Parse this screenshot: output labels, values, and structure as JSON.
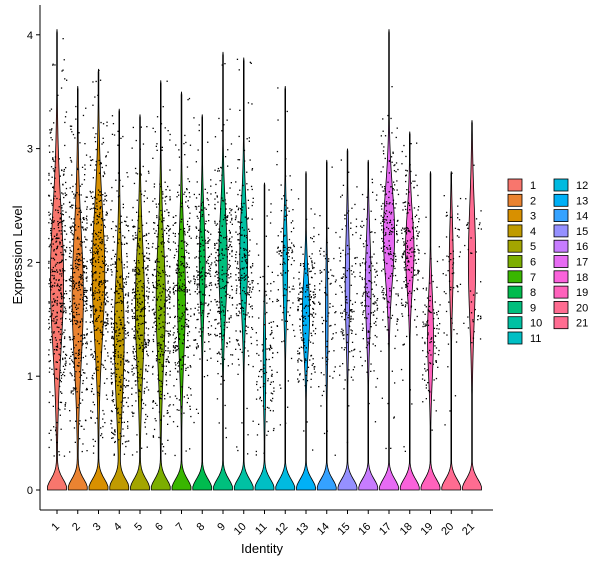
{
  "chart_data": {
    "type": "violin",
    "xlabel": "Identity",
    "ylabel": "Expression Level",
    "ylim": [
      -0.2,
      4.3
    ],
    "yticks": [
      0,
      1,
      2,
      3,
      4
    ],
    "legend_placement": "right",
    "grid": false,
    "groups": [
      {
        "label": "1",
        "color": "#F8766D",
        "max": 4.05,
        "upper_mass": 1.0,
        "upper_center": 1.85,
        "upper_spread": 0.85,
        "dots": 1.0
      },
      {
        "label": "2",
        "color": "#EA8331",
        "max": 3.55,
        "upper_mass": 0.85,
        "upper_center": 1.7,
        "upper_spread": 0.8,
        "dots": 0.95
      },
      {
        "label": "3",
        "color": "#D89000",
        "max": 3.7,
        "upper_mass": 0.95,
        "upper_center": 1.9,
        "upper_spread": 0.8,
        "dots": 0.95
      },
      {
        "label": "4",
        "color": "#C09B00",
        "max": 3.35,
        "upper_mass": 0.75,
        "upper_center": 1.35,
        "upper_spread": 0.8,
        "dots": 0.85
      },
      {
        "label": "5",
        "color": "#A3A500",
        "max": 3.3,
        "upper_mass": 0.7,
        "upper_center": 1.6,
        "upper_spread": 0.75,
        "dots": 0.8
      },
      {
        "label": "6",
        "color": "#7CAE00",
        "max": 3.6,
        "upper_mass": 0.7,
        "upper_center": 1.65,
        "upper_spread": 0.75,
        "dots": 0.8
      },
      {
        "label": "7",
        "color": "#39B600",
        "max": 3.5,
        "upper_mass": 0.6,
        "upper_center": 1.7,
        "upper_spread": 0.7,
        "dots": 0.7
      },
      {
        "label": "8",
        "color": "#00BB4E",
        "max": 3.3,
        "upper_mass": 0.45,
        "upper_center": 2.0,
        "upper_spread": 0.55,
        "dots": 0.5
      },
      {
        "label": "9",
        "color": "#00BF7D",
        "max": 3.85,
        "upper_mass": 0.65,
        "upper_center": 2.0,
        "upper_spread": 0.6,
        "dots": 0.6
      },
      {
        "label": "10",
        "color": "#00C1A3",
        "max": 3.8,
        "upper_mass": 0.6,
        "upper_center": 2.05,
        "upper_spread": 0.6,
        "dots": 0.55
      },
      {
        "label": "11",
        "color": "#00BFC4",
        "max": 2.7,
        "upper_mass": 0.2,
        "upper_center": 1.1,
        "upper_spread": 0.55,
        "dots": 0.3
      },
      {
        "label": "12",
        "color": "#00BAE0",
        "max": 3.55,
        "upper_mass": 0.35,
        "upper_center": 1.95,
        "upper_spread": 0.55,
        "dots": 0.3
      },
      {
        "label": "13",
        "color": "#00B0F6",
        "max": 2.8,
        "upper_mass": 0.55,
        "upper_center": 1.55,
        "upper_spread": 0.45,
        "dots": 0.45
      },
      {
        "label": "14",
        "color": "#35A2FF",
        "max": 2.9,
        "upper_mass": 0.2,
        "upper_center": 1.5,
        "upper_spread": 0.6,
        "dots": 0.2
      },
      {
        "label": "15",
        "color": "#9590FF",
        "max": 3.0,
        "upper_mass": 0.35,
        "upper_center": 1.8,
        "upper_spread": 0.6,
        "dots": 0.3
      },
      {
        "label": "16",
        "color": "#C77CFF",
        "max": 2.9,
        "upper_mass": 0.45,
        "upper_center": 1.8,
        "upper_spread": 0.55,
        "dots": 0.35
      },
      {
        "label": "17",
        "color": "#E76BF3",
        "max": 4.05,
        "upper_mass": 0.85,
        "upper_center": 2.25,
        "upper_spread": 0.55,
        "dots": 0.5
      },
      {
        "label": "18",
        "color": "#FA62DB",
        "max": 3.15,
        "upper_mass": 0.65,
        "upper_center": 2.1,
        "upper_spread": 0.45,
        "dots": 0.45
      },
      {
        "label": "19",
        "color": "#FF62BC",
        "max": 2.8,
        "upper_mass": 0.45,
        "upper_center": 1.35,
        "upper_spread": 0.5,
        "dots": 0.25
      },
      {
        "label": "20",
        "color": "#FF6C91",
        "max": 2.8,
        "upper_mass": 0.3,
        "upper_center": 2.0,
        "upper_spread": 0.5,
        "dots": 0.15
      },
      {
        "label": "21",
        "color": "#FF6C91",
        "max": 3.25,
        "upper_mass": 0.55,
        "upper_center": 2.0,
        "upper_spread": 0.7,
        "dots": 0.1
      }
    ],
    "legend_entries": [
      {
        "label": "1",
        "color": "#F8766D"
      },
      {
        "label": "2",
        "color": "#EA8331"
      },
      {
        "label": "3",
        "color": "#D89000"
      },
      {
        "label": "4",
        "color": "#C09B00"
      },
      {
        "label": "5",
        "color": "#A3A500"
      },
      {
        "label": "6",
        "color": "#7CAE00"
      },
      {
        "label": "7",
        "color": "#39B600"
      },
      {
        "label": "8",
        "color": "#00BB4E"
      },
      {
        "label": "9",
        "color": "#00BF7D"
      },
      {
        "label": "10",
        "color": "#00C1A3"
      },
      {
        "label": "11",
        "color": "#00BFC4"
      },
      {
        "label": "12",
        "color": "#00BAE0"
      },
      {
        "label": "13",
        "color": "#00B0F6"
      },
      {
        "label": "14",
        "color": "#35A2FF"
      },
      {
        "label": "15",
        "color": "#9590FF"
      },
      {
        "label": "16",
        "color": "#C77CFF"
      },
      {
        "label": "17",
        "color": "#E76BF3"
      },
      {
        "label": "18",
        "color": "#FA62DB"
      },
      {
        "label": "19",
        "color": "#FF62BC"
      },
      {
        "label": "20",
        "color": "#FF6C91"
      },
      {
        "label": "21",
        "color": "#FF6C91"
      }
    ]
  }
}
